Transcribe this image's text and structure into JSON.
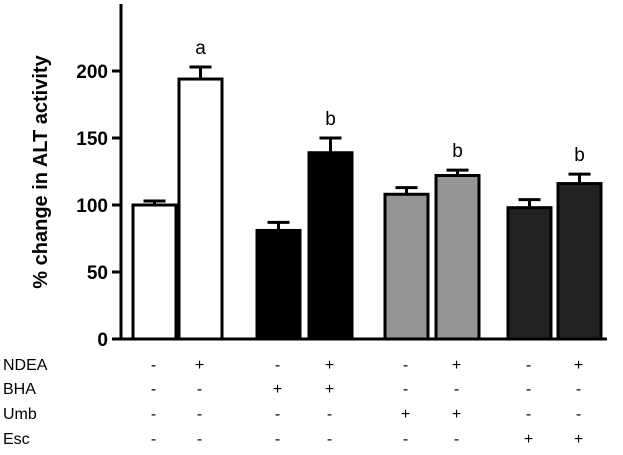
{
  "chart_data": {
    "type": "bar",
    "ylabel": "% change in ALT activity",
    "ylim": [
      0,
      250
    ],
    "yticks": [
      0,
      50,
      100,
      150,
      200
    ],
    "grid": false,
    "legend": "none",
    "bars": [
      {
        "value": 100,
        "error": 3,
        "color": "#ffffff",
        "annotation": ""
      },
      {
        "value": 194,
        "error": 9,
        "color": "#ffffff",
        "annotation": "a"
      },
      {
        "value": 81,
        "error": 6,
        "color": "#000000",
        "annotation": ""
      },
      {
        "value": 139,
        "error": 11,
        "color": "#000000",
        "annotation": "b"
      },
      {
        "value": 108,
        "error": 5,
        "color": "#959595",
        "annotation": ""
      },
      {
        "value": 122,
        "error": 4,
        "color": "#959595",
        "annotation": "b"
      },
      {
        "value": 98,
        "error": 6,
        "color": "#222222",
        "annotation": ""
      },
      {
        "value": 116,
        "error": 7,
        "color": "#222222",
        "annotation": "b"
      }
    ],
    "treatment_table": [
      {
        "label": "NDEA",
        "signs": [
          "-",
          "+",
          "-",
          "+",
          "-",
          "+",
          "-",
          "+"
        ]
      },
      {
        "label": "BHA",
        "signs": [
          "-",
          "-",
          "+",
          "+",
          "-",
          "-",
          "-",
          "-"
        ]
      },
      {
        "label": "Umb",
        "signs": [
          "-",
          "-",
          "-",
          "-",
          "+",
          "+",
          "-",
          "-"
        ]
      },
      {
        "label": "Esc",
        "signs": [
          "-",
          "-",
          "-",
          "-",
          "-",
          "-",
          "+",
          "+"
        ]
      }
    ]
  }
}
